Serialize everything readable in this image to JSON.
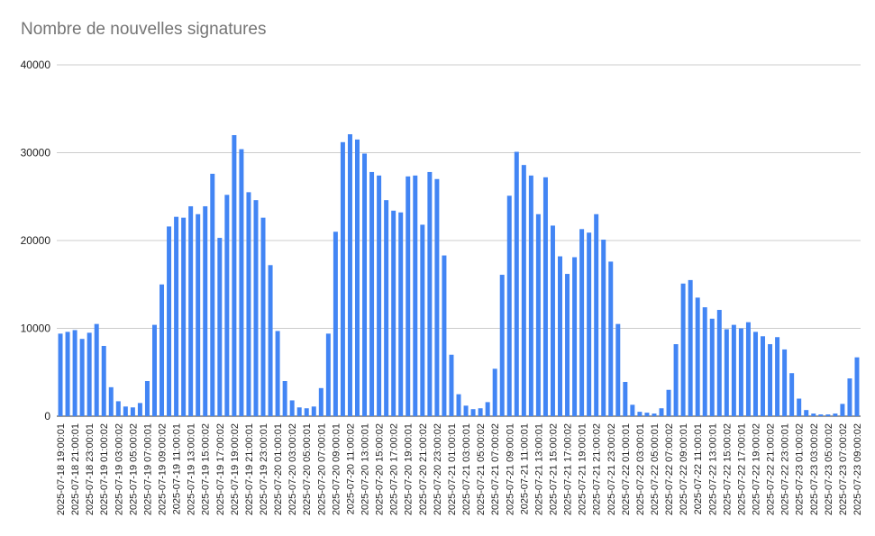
{
  "chart_data": {
    "type": "bar",
    "title": "Nombre de nouvelles signatures",
    "xlabel": "",
    "ylabel": "",
    "ylim": [
      0,
      40000
    ],
    "yticks": [
      0,
      10000,
      20000,
      30000,
      40000
    ],
    "grid": true,
    "legend": "none",
    "bar_color": "#4285f4",
    "categories": [
      "2025-07-18 19:00:01",
      "2025-07-18 20:00:01",
      "2025-07-18 21:00:01",
      "2025-07-18 22:00:01",
      "2025-07-18 23:00:01",
      "2025-07-19 00:00:01",
      "2025-07-19 01:00:02",
      "2025-07-19 02:00:02",
      "2025-07-19 03:00:02",
      "2025-07-19 04:00:02",
      "2025-07-19 05:00:02",
      "2025-07-19 06:00:02",
      "2025-07-19 07:00:01",
      "2025-07-19 08:00:01",
      "2025-07-19 09:00:02",
      "2025-07-19 10:00:02",
      "2025-07-19 11:00:01",
      "2025-07-19 12:00:01",
      "2025-07-19 13:00:01",
      "2025-07-19 14:00:01",
      "2025-07-19 15:00:02",
      "2025-07-19 16:00:02",
      "2025-07-19 17:00:02",
      "2025-07-19 18:00:02",
      "2025-07-19 19:00:02",
      "2025-07-19 20:00:02",
      "2025-07-19 21:00:01",
      "2025-07-19 22:00:01",
      "2025-07-19 23:00:01",
      "2025-07-20 00:00:01",
      "2025-07-20 01:00:01",
      "2025-07-20 02:00:01",
      "2025-07-20 03:00:02",
      "2025-07-20 04:00:02",
      "2025-07-20 05:00:01",
      "2025-07-20 06:00:01",
      "2025-07-20 07:00:01",
      "2025-07-20 08:00:01",
      "2025-07-20 09:00:01",
      "2025-07-20 10:00:01",
      "2025-07-20 11:00:02",
      "2025-07-20 12:00:02",
      "2025-07-20 13:00:01",
      "2025-07-20 14:00:01",
      "2025-07-20 15:00:02",
      "2025-07-20 16:00:02",
      "2025-07-20 17:00:02",
      "2025-07-20 18:00:02",
      "2025-07-20 19:00:01",
      "2025-07-20 20:00:01",
      "2025-07-20 21:00:02",
      "2025-07-20 22:00:02",
      "2025-07-20 23:00:02",
      "2025-07-21 00:00:02",
      "2025-07-21 01:00:01",
      "2025-07-21 02:00:01",
      "2025-07-21 03:00:01",
      "2025-07-21 04:00:01",
      "2025-07-21 05:00:02",
      "2025-07-21 06:00:02",
      "2025-07-21 07:00:02",
      "2025-07-21 08:00:02",
      "2025-07-21 09:00:01",
      "2025-07-21 10:00:01",
      "2025-07-21 11:00:01",
      "2025-07-21 12:00:01",
      "2025-07-21 13:00:01",
      "2025-07-21 14:00:01",
      "2025-07-21 15:00:02",
      "2025-07-21 16:00:02",
      "2025-07-21 17:00:02",
      "2025-07-21 18:00:02",
      "2025-07-21 19:00:01",
      "2025-07-21 20:00:01",
      "2025-07-21 21:00:02",
      "2025-07-21 22:00:02",
      "2025-07-21 23:00:02",
      "2025-07-22 00:00:02",
      "2025-07-22 01:00:01",
      "2025-07-22 02:00:01",
      "2025-07-22 03:00:01",
      "2025-07-22 04:00:01",
      "2025-07-22 05:00:01",
      "2025-07-22 06:00:01",
      "2025-07-22 07:00:02",
      "2025-07-22 08:00:02",
      "2025-07-22 09:00:01",
      "2025-07-22 10:00:01",
      "2025-07-22 11:00:01",
      "2025-07-22 12:00:01",
      "2025-07-22 13:00:01",
      "2025-07-22 14:00:01",
      "2025-07-22 15:00:02",
      "2025-07-22 16:00:02",
      "2025-07-22 17:00:01",
      "2025-07-22 18:00:01",
      "2025-07-22 19:00:02",
      "2025-07-22 20:00:02",
      "2025-07-22 21:00:02",
      "2025-07-22 22:00:02",
      "2025-07-22 23:00:01",
      "2025-07-23 00:00:01",
      "2025-07-23 01:00:02",
      "2025-07-23 02:00:02",
      "2025-07-23 03:00:02",
      "2025-07-23 04:00:02",
      "2025-07-23 05:00:02",
      "2025-07-23 06:00:02",
      "2025-07-23 07:00:02",
      "2025-07-23 08:00:02",
      "2025-07-23 09:00:02"
    ],
    "visible_tick_labels": [
      "2025-07-18 19:00:01",
      "2025-07-18 21:00:01",
      "2025-07-18 23:00:01",
      "2025-07-19 01:00:02",
      "2025-07-19 03:00:02",
      "2025-07-19 05:00:02",
      "2025-07-19 07:00:01",
      "2025-07-19 09:00:02",
      "2025-07-19 11:00:01",
      "2025-07-19 13:00:01",
      "2025-07-19 15:00:02",
      "2025-07-19 17:00:02",
      "2025-07-19 19:00:02",
      "2025-07-19 21:00:01",
      "2025-07-19 23:00:01",
      "2025-07-20 01:00:01",
      "2025-07-20 03:00:02",
      "2025-07-20 05:00:01",
      "2025-07-20 07:00:01",
      "2025-07-20 09:00:01",
      "2025-07-20 11:00:02",
      "2025-07-20 13:00:01",
      "2025-07-20 15:00:02",
      "2025-07-20 17:00:02",
      "2025-07-20 19:00:01",
      "2025-07-20 21:00:02",
      "2025-07-20 23:00:02",
      "2025-07-21 01:00:01",
      "2025-07-21 03:00:01",
      "2025-07-21 05:00:02",
      "2025-07-21 07:00:02",
      "2025-07-21 09:00:01",
      "2025-07-21 11:00:01",
      "2025-07-21 13:00:01",
      "2025-07-21 15:00:02",
      "2025-07-21 17:00:02",
      "2025-07-21 19:00:01",
      "2025-07-21 21:00:02",
      "2025-07-21 23:00:02",
      "2025-07-22 01:00:01",
      "2025-07-22 03:00:01",
      "2025-07-22 05:00:01",
      "2025-07-22 07:00:02",
      "2025-07-22 09:00:01",
      "2025-07-22 11:00:01",
      "2025-07-22 13:00:01",
      "2025-07-22 15:00:02",
      "2025-07-22 17:00:01",
      "2025-07-22 19:00:02",
      "2025-07-22 21:00:02",
      "2025-07-22 23:00:01",
      "2025-07-23 01:00:02",
      "2025-07-23 03:00:02",
      "2025-07-23 05:00:02",
      "2025-07-23 07:00:02",
      "2025-07-23 09:00:02"
    ],
    "values": [
      9400,
      9600,
      9800,
      8800,
      9500,
      10500,
      8000,
      3300,
      1700,
      1100,
      1000,
      1500,
      4000,
      10400,
      15000,
      21600,
      22700,
      22600,
      23900,
      23000,
      23900,
      27600,
      20300,
      25200,
      32000,
      30400,
      25500,
      24600,
      22600,
      17200,
      9700,
      4000,
      1800,
      1000,
      900,
      1100,
      3200,
      9400,
      21000,
      31200,
      32100,
      31500,
      29900,
      27800,
      27400,
      24600,
      23400,
      23200,
      27300,
      27400,
      21800,
      27800,
      27000,
      18300,
      7000,
      2500,
      1200,
      800,
      900,
      1600,
      5400,
      16100,
      25100,
      30100,
      28600,
      27400,
      23000,
      27200,
      21700,
      18200,
      16200,
      18100,
      21300,
      20900,
      23000,
      20100,
      17600,
      10500,
      3900,
      1300,
      500,
      400,
      300,
      900,
      3000,
      8200,
      15100,
      15500,
      13500,
      12400,
      11100,
      12100,
      9900,
      10400,
      10000,
      10700,
      9600,
      9100,
      8200,
      9000,
      7600,
      4900,
      2000,
      700,
      300,
      200,
      200,
      300,
      1400,
      4300,
      6700
    ]
  }
}
